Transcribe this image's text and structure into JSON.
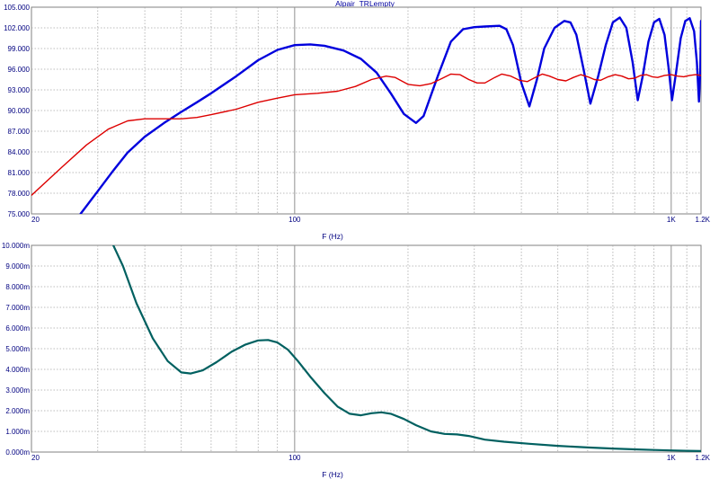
{
  "chart_data": [
    {
      "type": "line",
      "title": "Alpair_TRLempty",
      "xlabel": "F (Hz)",
      "ylabel": "",
      "xscale": "log",
      "xlim": [
        20,
        1200
      ],
      "ylim": [
        75,
        105
      ],
      "grid": true,
      "x_tick_labels": [
        {
          "value": 20,
          "label": "20"
        },
        {
          "value": 100,
          "label": "100"
        },
        {
          "value": 1000,
          "label": "1K"
        },
        {
          "value": 1200,
          "label": "1.2K"
        }
      ],
      "y_tick_labels": [
        {
          "value": 75,
          "label": "75.000"
        },
        {
          "value": 78,
          "label": "78.000"
        },
        {
          "value": 81,
          "label": "81.000"
        },
        {
          "value": 84,
          "label": "84.000"
        },
        {
          "value": 87,
          "label": "87.000"
        },
        {
          "value": 90,
          "label": "90.000"
        },
        {
          "value": 93,
          "label": "93.000"
        },
        {
          "value": 96,
          "label": "96.000"
        },
        {
          "value": 99,
          "label": "99.000"
        },
        {
          "value": 102,
          "label": "102.000"
        },
        {
          "value": 105,
          "label": "105.000"
        }
      ],
      "series": [
        {
          "color": "#0000dd",
          "width": 2.4,
          "points": [
            [
              27,
              75.0
            ],
            [
              30,
              78.3
            ],
            [
              33,
              81.3
            ],
            [
              36,
              83.9
            ],
            [
              40,
              86.2
            ],
            [
              45,
              88.2
            ],
            [
              50,
              89.8
            ],
            [
              55,
              91.2
            ],
            [
              60,
              92.5
            ],
            [
              70,
              95.0
            ],
            [
              80,
              97.3
            ],
            [
              90,
              98.8
            ],
            [
              100,
              99.5
            ],
            [
              110,
              99.6
            ],
            [
              120,
              99.4
            ],
            [
              135,
              98.7
            ],
            [
              150,
              97.5
            ],
            [
              165,
              95.5
            ],
            [
              180,
              92.5
            ],
            [
              195,
              89.5
            ],
            [
              210,
              88.2
            ],
            [
              220,
              89.2
            ],
            [
              240,
              95.0
            ],
            [
              260,
              100.0
            ],
            [
              280,
              101.8
            ],
            [
              300,
              102.1
            ],
            [
              320,
              102.2
            ],
            [
              350,
              102.3
            ],
            [
              365,
              101.8
            ],
            [
              380,
              99.5
            ],
            [
              400,
              94.0
            ],
            [
              420,
              90.6
            ],
            [
              440,
              94.5
            ],
            [
              460,
              99.0
            ],
            [
              490,
              102.0
            ],
            [
              520,
              103.0
            ],
            [
              540,
              102.8
            ],
            [
              560,
              101.0
            ],
            [
              585,
              96.0
            ],
            [
              610,
              91.0
            ],
            [
              640,
              95.0
            ],
            [
              670,
              99.5
            ],
            [
              700,
              102.8
            ],
            [
              730,
              103.5
            ],
            [
              760,
              102.0
            ],
            [
              790,
              97.0
            ],
            [
              815,
              91.5
            ],
            [
              840,
              95.0
            ],
            [
              870,
              100.0
            ],
            [
              900,
              102.8
            ],
            [
              930,
              103.3
            ],
            [
              960,
              101.0
            ],
            [
              985,
              96.0
            ],
            [
              1005,
              91.5
            ],
            [
              1030,
              95.5
            ],
            [
              1060,
              100.5
            ],
            [
              1090,
              103.0
            ],
            [
              1120,
              103.4
            ],
            [
              1150,
              101.5
            ],
            [
              1170,
              97.0
            ],
            [
              1185,
              91.3
            ],
            [
              1195,
              96.0
            ],
            [
              1200,
              103.0
            ]
          ]
        },
        {
          "color": "#dd0000",
          "width": 1.4,
          "points": [
            [
              20,
              77.7
            ],
            [
              24,
              81.7
            ],
            [
              28,
              85.0
            ],
            [
              32,
              87.3
            ],
            [
              36,
              88.5
            ],
            [
              40,
              88.8
            ],
            [
              45,
              88.8
            ],
            [
              50,
              88.8
            ],
            [
              55,
              89.0
            ],
            [
              60,
              89.4
            ],
            [
              70,
              90.2
            ],
            [
              80,
              91.2
            ],
            [
              90,
              91.8
            ],
            [
              100,
              92.3
            ],
            [
              115,
              92.5
            ],
            [
              130,
              92.8
            ],
            [
              145,
              93.5
            ],
            [
              160,
              94.5
            ],
            [
              175,
              95.0
            ],
            [
              185,
              94.8
            ],
            [
              200,
              93.8
            ],
            [
              215,
              93.6
            ],
            [
              230,
              93.9
            ],
            [
              245,
              94.6
            ],
            [
              260,
              95.3
            ],
            [
              275,
              95.2
            ],
            [
              290,
              94.5
            ],
            [
              305,
              94.0
            ],
            [
              320,
              94.0
            ],
            [
              340,
              94.8
            ],
            [
              355,
              95.3
            ],
            [
              375,
              95.0
            ],
            [
              395,
              94.4
            ],
            [
              415,
              94.2
            ],
            [
              435,
              94.8
            ],
            [
              455,
              95.3
            ],
            [
              475,
              95.0
            ],
            [
              500,
              94.5
            ],
            [
              525,
              94.3
            ],
            [
              550,
              94.8
            ],
            [
              575,
              95.2
            ],
            [
              600,
              94.9
            ],
            [
              625,
              94.5
            ],
            [
              650,
              94.4
            ],
            [
              680,
              94.9
            ],
            [
              710,
              95.2
            ],
            [
              740,
              95.0
            ],
            [
              770,
              94.6
            ],
            [
              800,
              94.7
            ],
            [
              830,
              95.1
            ],
            [
              860,
              95.2
            ],
            [
              890,
              94.9
            ],
            [
              920,
              94.8
            ],
            [
              960,
              95.1
            ],
            [
              1000,
              95.2
            ],
            [
              1040,
              95.0
            ],
            [
              1080,
              94.9
            ],
            [
              1120,
              95.1
            ],
            [
              1160,
              95.2
            ],
            [
              1200,
              95.1
            ]
          ]
        }
      ]
    },
    {
      "type": "line",
      "title": "",
      "xlabel": "F (Hz)",
      "ylabel": "",
      "xscale": "log",
      "xlim": [
        20,
        1200
      ],
      "ylim": [
        0,
        10
      ],
      "grid": true,
      "x_tick_labels": [
        {
          "value": 20,
          "label": "20"
        },
        {
          "value": 100,
          "label": "100"
        },
        {
          "value": 1000,
          "label": "1K"
        },
        {
          "value": 1200,
          "label": "1.2K"
        }
      ],
      "y_tick_labels": [
        {
          "value": 0,
          "label": "0.000m"
        },
        {
          "value": 1,
          "label": "1.000m"
        },
        {
          "value": 2,
          "label": "2.000m"
        },
        {
          "value": 3,
          "label": "3.000m"
        },
        {
          "value": 4,
          "label": "4.000m"
        },
        {
          "value": 5,
          "label": "5.000m"
        },
        {
          "value": 6,
          "label": "6.000m"
        },
        {
          "value": 7,
          "label": "7.000m"
        },
        {
          "value": 8,
          "label": "8.000m"
        },
        {
          "value": 9,
          "label": "9.000m"
        },
        {
          "value": 10,
          "label": "10.000m"
        }
      ],
      "series": [
        {
          "color": "#006060",
          "width": 2.2,
          "points": [
            [
              33,
              10.0
            ],
            [
              35,
              9.0
            ],
            [
              38,
              7.2
            ],
            [
              42,
              5.5
            ],
            [
              46,
              4.4
            ],
            [
              50,
              3.85
            ],
            [
              53,
              3.8
            ],
            [
              57,
              3.95
            ],
            [
              62,
              4.35
            ],
            [
              68,
              4.85
            ],
            [
              74,
              5.2
            ],
            [
              80,
              5.4
            ],
            [
              85,
              5.42
            ],
            [
              90,
              5.3
            ],
            [
              96,
              4.95
            ],
            [
              102,
              4.4
            ],
            [
              110,
              3.65
            ],
            [
              120,
              2.85
            ],
            [
              130,
              2.2
            ],
            [
              140,
              1.85
            ],
            [
              150,
              1.78
            ],
            [
              160,
              1.88
            ],
            [
              170,
              1.92
            ],
            [
              180,
              1.85
            ],
            [
              195,
              1.6
            ],
            [
              210,
              1.3
            ],
            [
              230,
              1.0
            ],
            [
              250,
              0.88
            ],
            [
              270,
              0.85
            ],
            [
              290,
              0.78
            ],
            [
              320,
              0.6
            ],
            [
              360,
              0.5
            ],
            [
              420,
              0.4
            ],
            [
              500,
              0.3
            ],
            [
              600,
              0.22
            ],
            [
              700,
              0.17
            ],
            [
              800,
              0.13
            ],
            [
              900,
              0.1
            ],
            [
              1000,
              0.08
            ],
            [
              1100,
              0.06
            ],
            [
              1200,
              0.05
            ]
          ]
        }
      ]
    }
  ]
}
